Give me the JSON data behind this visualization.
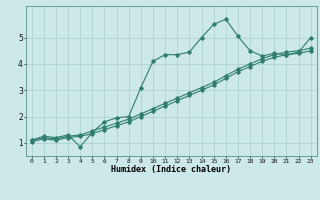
{
  "title": "",
  "xlabel": "Humidex (Indice chaleur)",
  "ylabel": "",
  "bg_color": "#cce8e8",
  "line_color": "#2e7d6e",
  "grid_color": "#aacece",
  "xlim": [
    -0.5,
    23.5
  ],
  "ylim": [
    0.5,
    6.2
  ],
  "yticks": [
    1,
    2,
    3,
    4,
    5
  ],
  "xticks": [
    0,
    1,
    2,
    3,
    4,
    5,
    6,
    7,
    8,
    9,
    10,
    11,
    12,
    13,
    14,
    15,
    16,
    17,
    18,
    19,
    20,
    21,
    22,
    23
  ],
  "line1_x": [
    0,
    1,
    2,
    3,
    4,
    5,
    6,
    7,
    8,
    9,
    10,
    11,
    12,
    13,
    14,
    15,
    16,
    17,
    18,
    19,
    20,
    21,
    22,
    23
  ],
  "line1_y": [
    1.1,
    1.25,
    1.2,
    1.3,
    0.85,
    1.4,
    1.8,
    1.95,
    2.0,
    3.1,
    4.1,
    4.35,
    4.35,
    4.45,
    5.0,
    5.5,
    5.7,
    5.05,
    4.5,
    4.3,
    4.4,
    4.35,
    4.45,
    5.0
  ],
  "line2_x": [
    0,
    1,
    2,
    3,
    4,
    5,
    6,
    7,
    8,
    9,
    10,
    11,
    12,
    13,
    14,
    15,
    16,
    17,
    18,
    19,
    20,
    21,
    22,
    23
  ],
  "line2_y": [
    1.1,
    1.2,
    1.15,
    1.25,
    1.3,
    1.45,
    1.6,
    1.75,
    1.9,
    2.1,
    2.3,
    2.5,
    2.7,
    2.9,
    3.1,
    3.3,
    3.55,
    3.8,
    4.0,
    4.2,
    4.35,
    4.45,
    4.5,
    4.6
  ],
  "line3_x": [
    0,
    1,
    2,
    3,
    4,
    5,
    6,
    7,
    8,
    9,
    10,
    11,
    12,
    13,
    14,
    15,
    16,
    17,
    18,
    19,
    20,
    21,
    22,
    23
  ],
  "line3_y": [
    1.05,
    1.15,
    1.1,
    1.2,
    1.25,
    1.35,
    1.5,
    1.65,
    1.8,
    2.0,
    2.2,
    2.4,
    2.6,
    2.8,
    3.0,
    3.2,
    3.45,
    3.7,
    3.9,
    4.1,
    4.25,
    4.35,
    4.4,
    4.5
  ]
}
